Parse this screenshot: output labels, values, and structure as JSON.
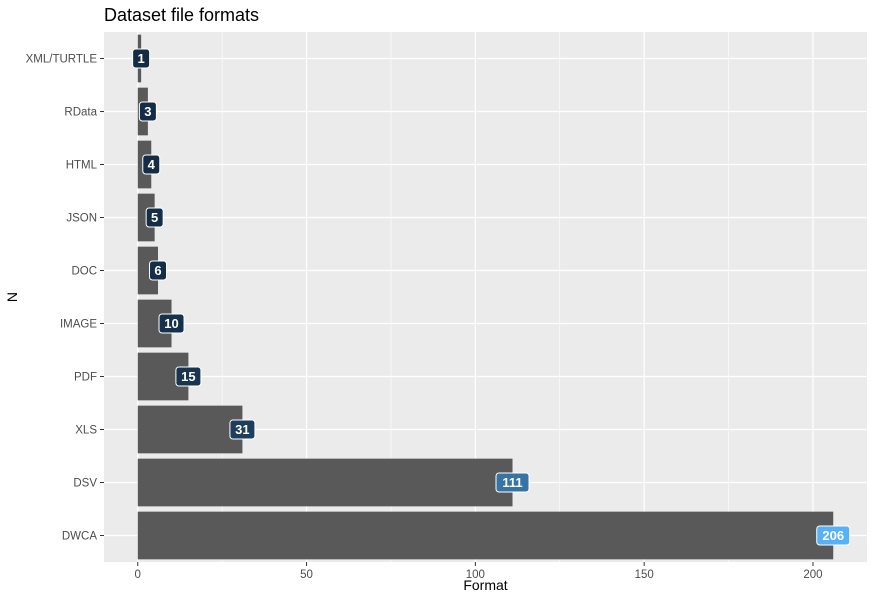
{
  "chart_data": {
    "type": "bar",
    "orientation": "horizontal",
    "title": "Dataset file formats",
    "xlabel": "Format",
    "ylabel": "N",
    "categories": [
      "XML/TURTLE",
      "RData",
      "HTML",
      "JSON",
      "DOC",
      "IMAGE",
      "PDF",
      "XLS",
      "DSV",
      "DWCA"
    ],
    "values": [
      1,
      3,
      4,
      5,
      6,
      10,
      15,
      31,
      111,
      206
    ],
    "xlim": [
      -10,
      216
    ],
    "xticks": [
      0,
      50,
      100,
      150,
      200
    ],
    "grid": true,
    "bar_color": "#595959",
    "panel_background": "#ebebeb",
    "grid_color": "#ffffff",
    "label_fill_scale": [
      "#132b43",
      "#56b1f7"
    ]
  }
}
